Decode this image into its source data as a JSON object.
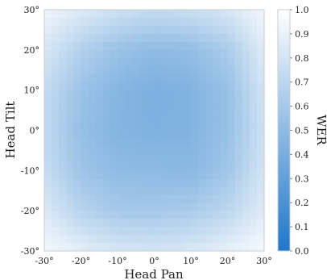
{
  "chart_data": {
    "type": "heatmap",
    "xlabel": "Head Pan",
    "ylabel": "Head Tilt",
    "xlim": [
      -30,
      30
    ],
    "ylim": [
      -30,
      30
    ],
    "x_ticks": [
      "-30°",
      "-20°",
      "-10°",
      "0°",
      "10°",
      "20°",
      "30°"
    ],
    "y_ticks": [
      "-30°",
      "-20°",
      "-10°",
      "0°",
      "10°",
      "20°",
      "30°"
    ],
    "x_tick_values": [
      -30,
      -20,
      -10,
      0,
      10,
      20,
      30
    ],
    "y_tick_values": [
      -30,
      -20,
      -10,
      0,
      10,
      20,
      30
    ],
    "colorbar": {
      "label": "WER",
      "range": [
        0,
        1
      ],
      "ticks": [
        "0.0",
        "0.1",
        "0.2",
        "0.3",
        "0.4",
        "0.5",
        "0.6",
        "0.7",
        "0.8",
        "0.9",
        "1.0"
      ],
      "tick_values": [
        0,
        0.1,
        0.2,
        0.3,
        0.4,
        0.5,
        0.6,
        0.7,
        0.8,
        0.9,
        1.0
      ],
      "color_low": "#1f77c8",
      "color_high": "#ffffff"
    },
    "grid_x": [
      -30,
      -20,
      -10,
      0,
      10,
      20,
      30
    ],
    "grid_y": [
      30,
      20,
      10,
      0,
      -10,
      -20,
      -30
    ],
    "values": [
      [
        0.93,
        0.85,
        0.78,
        0.74,
        0.76,
        0.82,
        0.94
      ],
      [
        0.82,
        0.66,
        0.55,
        0.5,
        0.52,
        0.62,
        0.86
      ],
      [
        0.74,
        0.56,
        0.46,
        0.42,
        0.44,
        0.54,
        0.8
      ],
      [
        0.72,
        0.53,
        0.45,
        0.43,
        0.44,
        0.54,
        0.78
      ],
      [
        0.75,
        0.57,
        0.5,
        0.49,
        0.48,
        0.58,
        0.8
      ],
      [
        0.84,
        0.68,
        0.6,
        0.6,
        0.62,
        0.7,
        0.86
      ],
      [
        0.95,
        0.88,
        0.82,
        0.8,
        0.83,
        0.89,
        0.96
      ]
    ]
  }
}
